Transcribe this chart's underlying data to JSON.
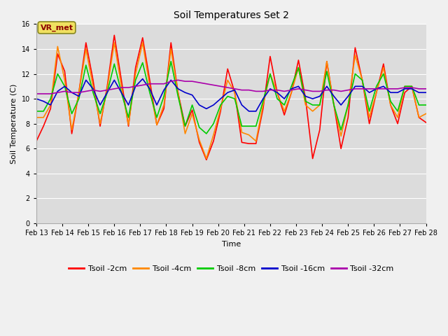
{
  "title": "Soil Temperatures Set 2",
  "xlabel": "Time",
  "ylabel": "Soil Temperature (C)",
  "ylim": [
    0,
    16
  ],
  "yticks": [
    0,
    2,
    4,
    6,
    8,
    10,
    12,
    14,
    16
  ],
  "fig_bg_color": "#f0f0f0",
  "plot_bg_upper": "#dcdcdc",
  "plot_bg_lower": "#e8e8e8",
  "grid_color": "#ffffff",
  "annotation_text": "VR_met",
  "annotation_bg": "#f0e060",
  "annotation_border": "#888820",
  "series": {
    "Tsoil -2cm": {
      "color": "#ff0000",
      "lw": 1.2
    },
    "Tsoil -4cm": {
      "color": "#ff8800",
      "lw": 1.2
    },
    "Tsoil -8cm": {
      "color": "#00cc00",
      "lw": 1.2
    },
    "Tsoil -16cm": {
      "color": "#0000cc",
      "lw": 1.2
    },
    "Tsoil -32cm": {
      "color": "#aa00aa",
      "lw": 1.2
    }
  },
  "x_labels": [
    "Feb 13",
    "Feb 14",
    "Feb 15",
    "Feb 16",
    "Feb 17",
    "Feb 18",
    "Feb 19",
    "Feb 20",
    "Feb 21",
    "Feb 22",
    "Feb 23",
    "Feb 24",
    "Feb 25",
    "Feb 26",
    "Feb 27",
    "Feb 28"
  ],
  "tsoil_2cm": [
    6.6,
    7.8,
    9.2,
    13.6,
    12.2,
    7.2,
    10.5,
    14.5,
    11.5,
    7.8,
    11.0,
    15.1,
    11.5,
    7.8,
    12.5,
    14.9,
    11.5,
    7.9,
    9.2,
    14.5,
    10.5,
    7.8,
    9.1,
    6.5,
    5.1,
    6.6,
    9.0,
    12.4,
    10.5,
    6.5,
    6.4,
    6.4,
    9.2,
    13.4,
    10.5,
    8.7,
    10.5,
    13.1,
    10.0,
    5.2,
    7.5,
    13.0,
    9.5,
    6.0,
    8.5,
    14.1,
    11.5,
    8.0,
    10.5,
    12.8,
    9.5,
    8.0,
    10.5,
    11.0,
    8.5,
    8.1
  ],
  "tsoil_4cm": [
    8.5,
    8.5,
    9.5,
    14.2,
    11.5,
    7.5,
    10.5,
    14.0,
    11.0,
    8.0,
    10.8,
    14.5,
    11.0,
    7.9,
    12.0,
    14.5,
    11.0,
    7.9,
    9.5,
    14.0,
    10.5,
    7.2,
    8.8,
    6.7,
    5.2,
    7.1,
    9.2,
    11.5,
    10.5,
    7.3,
    7.1,
    6.6,
    9.5,
    12.0,
    10.5,
    9.0,
    10.5,
    12.5,
    9.5,
    9.0,
    9.5,
    13.0,
    9.5,
    7.0,
    9.5,
    13.5,
    11.5,
    8.5,
    10.5,
    12.5,
    9.5,
    8.5,
    11.0,
    11.0,
    8.5,
    8.8
  ],
  "tsoil_8cm": [
    9.0,
    9.0,
    10.0,
    12.0,
    11.0,
    8.8,
    10.0,
    12.7,
    10.5,
    8.8,
    10.5,
    12.8,
    10.5,
    8.5,
    11.5,
    12.9,
    10.5,
    8.5,
    10.2,
    13.0,
    10.2,
    7.8,
    9.5,
    7.7,
    7.2,
    8.0,
    9.5,
    10.2,
    10.0,
    7.8,
    7.8,
    7.8,
    9.8,
    12.0,
    10.0,
    9.5,
    11.0,
    12.5,
    9.8,
    9.5,
    9.5,
    12.2,
    9.5,
    7.5,
    9.5,
    12.0,
    11.5,
    9.0,
    11.0,
    12.0,
    9.8,
    9.0,
    11.0,
    11.0,
    9.5,
    9.5
  ],
  "tsoil_16cm": [
    10.0,
    9.8,
    9.5,
    10.6,
    11.0,
    10.5,
    10.2,
    11.5,
    10.8,
    9.5,
    10.5,
    11.5,
    10.5,
    9.5,
    11.0,
    11.6,
    10.8,
    9.5,
    10.7,
    11.5,
    10.8,
    10.5,
    10.3,
    9.5,
    9.2,
    9.5,
    10.0,
    10.5,
    10.7,
    9.5,
    9.0,
    9.0,
    10.0,
    10.8,
    10.5,
    10.0,
    10.8,
    11.0,
    10.2,
    10.0,
    10.2,
    11.0,
    10.2,
    9.5,
    10.2,
    11.0,
    11.0,
    10.5,
    10.8,
    11.0,
    10.5,
    10.5,
    10.8,
    10.8,
    10.5,
    10.5
  ],
  "tsoil_32cm": [
    10.4,
    10.4,
    10.4,
    10.5,
    10.6,
    10.5,
    10.5,
    10.6,
    10.7,
    10.6,
    10.7,
    10.8,
    10.9,
    10.9,
    11.0,
    11.1,
    11.2,
    11.2,
    11.2,
    11.4,
    11.5,
    11.4,
    11.4,
    11.3,
    11.2,
    11.1,
    11.0,
    10.9,
    10.8,
    10.7,
    10.7,
    10.6,
    10.6,
    10.7,
    10.7,
    10.6,
    10.7,
    10.8,
    10.7,
    10.6,
    10.6,
    10.7,
    10.7,
    10.6,
    10.7,
    10.8,
    10.8,
    10.8,
    10.8,
    10.8,
    10.8,
    10.8,
    10.9,
    10.9,
    10.8,
    10.8
  ]
}
